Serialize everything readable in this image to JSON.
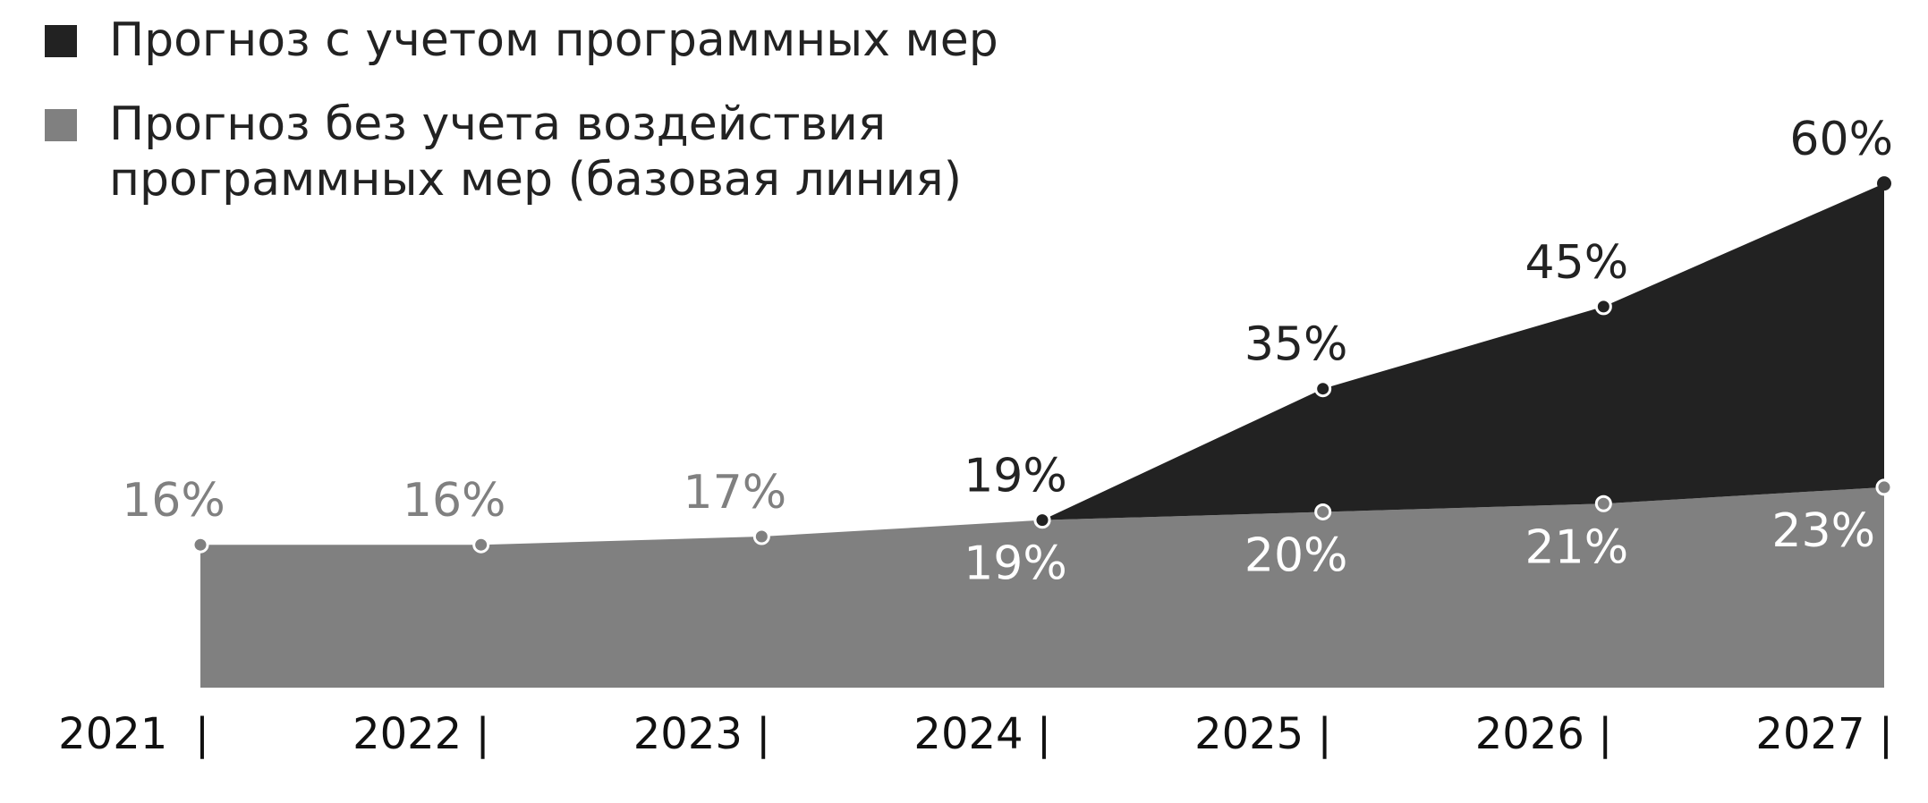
{
  "chart_data": {
    "type": "area",
    "categories": [
      "2021  |",
      "2022 |",
      "2023 |",
      "2024 |",
      "2025 |",
      "2026 |",
      "2027 |"
    ],
    "series": [
      {
        "name": "Прогноз с учетом программных мер",
        "color": "#222222",
        "values": [
          null,
          null,
          null,
          19,
          35,
          45,
          60
        ],
        "value_labels": [
          null,
          null,
          null,
          "19%",
          "35%",
          "45%",
          "60%"
        ]
      },
      {
        "name": "Прогноз без учета воздействия программных мер (базовая линия)",
        "color": "#808080",
        "values": [
          16,
          16,
          17,
          19,
          20,
          21,
          23
        ],
        "value_labels": [
          "16%",
          "16%",
          "17%",
          "19%",
          "20%",
          "21%",
          "23%"
        ]
      }
    ],
    "ylim": [
      -1.4,
      66
    ]
  }
}
